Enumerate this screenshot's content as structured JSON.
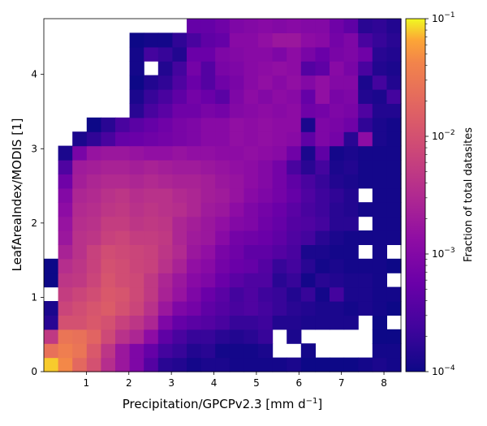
{
  "chart_data": {
    "type": "heatmap",
    "title": "",
    "xlabel": "Precipitation/GPCPv2.3 [mm d",
    "xlabel_sup": "−1",
    "xlabel_suffix": "]",
    "ylabel": "LeafAreaIndex/MODIS [1]",
    "x_range": [
      0.0,
      8.4
    ],
    "y_range": [
      0.0,
      4.75
    ],
    "x_ticks": [
      1,
      2,
      3,
      4,
      5,
      6,
      7,
      8
    ],
    "y_ticks": [
      0,
      1,
      2,
      3,
      4
    ],
    "n_x_bins": 25,
    "n_y_bins": 25,
    "colormap": "plasma",
    "log_color_scale": true,
    "color_range": [
      0.0001,
      0.1
    ],
    "colorbar": {
      "label": "Fraction of total datasites",
      "ticks": [
        {
          "value": 0.1,
          "base": "10",
          "exp": "−1"
        },
        {
          "value": 0.01,
          "base": "10",
          "exp": "−2"
        },
        {
          "value": 0.001,
          "base": "10",
          "exp": "−3"
        },
        {
          "value": 0.0001,
          "base": "10",
          "exp": "−4"
        }
      ]
    },
    "grid": false,
    "bin_log10_fraction": [
      [
        -1.1,
        -1.35,
        -1.7,
        -2.0,
        -2.45,
        -2.75,
        -3.05,
        -3.45,
        -3.8,
        -3.85,
        -3.95,
        -3.9,
        -3.9,
        -3.95,
        -3.95,
        -3.95,
        -3.95,
        -3.9,
        -4.0,
        -4.0,
        -4.0,
        -4.0,
        -3.95,
        -3.9,
        -3.95
      ],
      [
        -1.6,
        -1.45,
        -1.55,
        -1.9,
        -2.35,
        -2.75,
        -3.05,
        -3.3,
        -3.6,
        -3.7,
        -3.85,
        -3.8,
        -3.95,
        -3.95,
        -3.95,
        -3.9,
        null,
        null,
        -3.95,
        null,
        null,
        null,
        null,
        -3.95,
        -3.95
      ],
      [
        -2.3,
        -1.55,
        -1.6,
        -1.75,
        -2.1,
        -2.4,
        -2.55,
        -2.9,
        -3.35,
        -3.55,
        -3.7,
        -3.7,
        -3.8,
        -3.85,
        -3.8,
        -3.7,
        null,
        -3.9,
        null,
        null,
        null,
        null,
        null,
        -4.0,
        -4.0
      ],
      [
        -3.8,
        -2.0,
        -2.0,
        -1.9,
        -2.0,
        -2.2,
        -2.35,
        -2.55,
        -3.05,
        -3.3,
        -3.4,
        -3.45,
        -3.55,
        -3.7,
        -3.7,
        -3.65,
        -3.85,
        -3.85,
        -3.9,
        -3.9,
        -3.9,
        -3.9,
        null,
        -4.0,
        null
      ],
      [
        -3.9,
        -2.15,
        -2.05,
        -1.95,
        -1.85,
        -2.0,
        -2.15,
        -2.4,
        -2.75,
        -3.05,
        -3.15,
        -3.35,
        -3.45,
        -3.55,
        -3.5,
        -3.6,
        -3.7,
        -3.8,
        -3.85,
        -3.9,
        -3.9,
        -3.95,
        -3.9,
        -3.95,
        -4.0
      ],
      [
        null,
        -2.25,
        -2.15,
        -2.05,
        -1.9,
        -1.95,
        -2.1,
        -2.3,
        -2.6,
        -2.8,
        -3.05,
        -3.25,
        -3.4,
        -3.6,
        -3.5,
        -3.65,
        -3.7,
        -3.85,
        -3.7,
        -3.95,
        -3.6,
        -3.9,
        -3.9,
        -3.95,
        -3.95
      ],
      [
        -4.0,
        -2.35,
        -2.3,
        -2.15,
        -1.95,
        -2.05,
        -2.1,
        -2.3,
        -2.55,
        -2.75,
        -2.95,
        -3.05,
        -3.25,
        -3.4,
        -3.5,
        -3.5,
        -3.8,
        -3.7,
        -3.95,
        -3.8,
        -3.85,
        -3.9,
        -3.9,
        -3.95,
        null
      ],
      [
        -4.0,
        -2.45,
        -2.35,
        -2.2,
        -2.0,
        -2.05,
        -2.15,
        -2.2,
        -2.4,
        -2.6,
        -2.85,
        -2.95,
        -3.15,
        -3.25,
        -3.3,
        -3.45,
        -3.7,
        -3.6,
        -3.8,
        -3.95,
        -3.9,
        -3.95,
        -3.95,
        -3.95,
        -4.0
      ],
      [
        null,
        -2.6,
        -2.4,
        -2.2,
        -2.05,
        -2.1,
        -2.15,
        -2.2,
        -2.35,
        -2.5,
        -2.75,
        -2.85,
        -3.1,
        -3.2,
        -3.35,
        -3.35,
        -3.45,
        -3.55,
        -3.9,
        -3.9,
        -3.95,
        -3.95,
        null,
        -3.95,
        null
      ],
      [
        null,
        -2.75,
        -2.4,
        -2.35,
        -2.2,
        -2.15,
        -2.25,
        -2.25,
        -2.3,
        -2.55,
        -2.7,
        -2.75,
        -2.95,
        -3.15,
        -3.2,
        -3.25,
        -3.35,
        -3.5,
        -3.6,
        -3.8,
        -3.9,
        -3.95,
        -3.95,
        -3.95,
        -3.95
      ],
      [
        null,
        -2.8,
        -2.45,
        -2.4,
        -2.25,
        -2.25,
        -2.35,
        -2.3,
        -2.35,
        -2.55,
        -2.65,
        -2.75,
        -2.85,
        -3.0,
        -3.05,
        -3.2,
        -3.3,
        -3.45,
        -3.5,
        -3.6,
        -3.8,
        -3.8,
        null,
        -3.95,
        -3.95
      ],
      [
        null,
        -2.9,
        -2.5,
        -2.45,
        -2.35,
        -2.3,
        -2.4,
        -2.35,
        -2.4,
        -2.45,
        -2.55,
        -2.7,
        -2.75,
        -2.9,
        -3.05,
        -3.15,
        -3.25,
        -3.4,
        -3.55,
        -3.65,
        -3.8,
        -3.85,
        -3.95,
        -3.95,
        -3.95
      ],
      [
        null,
        -3.0,
        -2.55,
        -2.5,
        -2.4,
        -2.35,
        -2.45,
        -2.4,
        -2.4,
        -2.5,
        -2.55,
        -2.65,
        -2.7,
        -2.8,
        -2.95,
        -3.05,
        -3.15,
        -3.3,
        -3.5,
        -3.65,
        -3.75,
        -3.85,
        null,
        -3.95,
        -3.95
      ],
      [
        null,
        -3.2,
        -2.65,
        -2.55,
        -2.5,
        -2.5,
        -2.55,
        -2.5,
        -2.55,
        -2.6,
        -2.6,
        -2.65,
        -2.75,
        -2.8,
        -2.9,
        -3.0,
        -3.15,
        -3.35,
        -3.55,
        -3.7,
        -3.85,
        -3.9,
        -3.95,
        -3.95,
        -3.95
      ],
      [
        null,
        -3.5,
        -2.7,
        -2.65,
        -2.6,
        -2.6,
        -2.65,
        -2.6,
        -2.65,
        -2.7,
        -2.7,
        -2.75,
        -2.8,
        -2.85,
        -2.9,
        -3.0,
        -3.15,
        -3.55,
        -3.8,
        -3.6,
        -3.9,
        -3.85,
        -3.95,
        -3.95,
        -3.95
      ],
      [
        null,
        -3.9,
        -3.1,
        -2.8,
        -2.75,
        -2.75,
        -2.8,
        -2.85,
        -2.85,
        -2.8,
        -2.85,
        -2.85,
        -2.9,
        -2.9,
        -2.85,
        -2.9,
        -2.95,
        -3.2,
        -3.9,
        -3.35,
        -3.95,
        -3.9,
        -3.95,
        -3.95,
        -3.95
      ],
      [
        null,
        null,
        -3.9,
        -3.75,
        -3.55,
        -3.3,
        -3.25,
        -3.2,
        -3.15,
        -3.1,
        -3.05,
        -2.95,
        -2.95,
        -2.85,
        -2.9,
        -2.85,
        -2.9,
        -2.95,
        -3.35,
        -3.05,
        -3.15,
        -3.8,
        -2.9,
        -3.9,
        -3.95
      ],
      [
        null,
        null,
        null,
        -4.0,
        -3.8,
        -3.55,
        -3.4,
        -3.3,
        -3.2,
        -3.1,
        -3.05,
        -2.95,
        -2.95,
        -2.85,
        -2.9,
        -2.85,
        -2.9,
        -2.9,
        -3.9,
        -3.05,
        -3.1,
        -3.2,
        -3.75,
        -3.9,
        -3.95
      ],
      [
        null,
        null,
        null,
        null,
        null,
        null,
        -3.8,
        -3.55,
        -3.4,
        -3.2,
        -3.2,
        -3.1,
        -3.15,
        -3.0,
        -2.95,
        -2.9,
        -2.95,
        -2.9,
        -3.2,
        -3.15,
        -3.05,
        -3.1,
        -3.5,
        -3.85,
        -3.85
      ],
      [
        null,
        null,
        null,
        null,
        null,
        null,
        -3.9,
        -3.7,
        -3.55,
        -3.35,
        -3.15,
        -3.25,
        -3.4,
        -3.05,
        -2.9,
        -3.0,
        -2.9,
        -2.95,
        -3.3,
        -2.85,
        -3.1,
        -3.05,
        -3.85,
        -3.9,
        -3.6
      ],
      [
        null,
        null,
        null,
        null,
        null,
        null,
        -4.0,
        -3.85,
        -3.75,
        -3.5,
        -3.25,
        -3.45,
        -3.2,
        -3.1,
        -2.95,
        -2.85,
        -2.95,
        -2.85,
        -3.0,
        -2.85,
        -3.0,
        -3.0,
        -3.9,
        -3.6,
        -3.85
      ],
      [
        null,
        null,
        null,
        null,
        null,
        null,
        -3.95,
        null,
        -3.85,
        -3.6,
        -3.15,
        -3.45,
        -3.1,
        -3.05,
        -2.95,
        -2.9,
        -2.85,
        -2.9,
        -3.45,
        -3.35,
        -2.95,
        -3.1,
        -3.55,
        -3.85,
        -3.9
      ],
      [
        null,
        null,
        null,
        null,
        null,
        null,
        -3.95,
        -3.6,
        -3.7,
        -3.85,
        -3.25,
        -3.25,
        -3.05,
        -3.0,
        -2.95,
        -2.95,
        -3.05,
        -2.9,
        -3.1,
        -3.25,
        -3.1,
        -3.05,
        -3.2,
        -3.8,
        -3.85
      ],
      [
        null,
        null,
        null,
        null,
        null,
        null,
        -4.0,
        -3.95,
        -3.95,
        -3.75,
        -3.55,
        -3.35,
        -3.3,
        -2.95,
        -2.95,
        -2.85,
        -2.75,
        -2.75,
        -2.9,
        -2.95,
        -3.15,
        -3.05,
        -3.55,
        -3.7,
        -3.8
      ],
      [
        null,
        null,
        null,
        null,
        null,
        null,
        null,
        null,
        null,
        null,
        -3.3,
        -3.3,
        -3.2,
        -3.05,
        -3.0,
        -2.95,
        -3.0,
        -2.95,
        -3.0,
        -3.0,
        -3.2,
        -3.35,
        -3.8,
        -3.75,
        -3.85
      ]
    ]
  }
}
